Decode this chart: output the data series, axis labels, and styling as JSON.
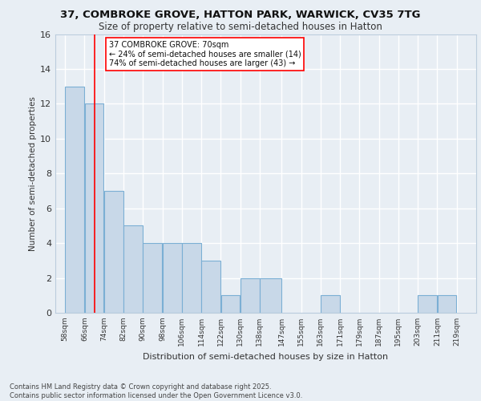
{
  "title_line1": "37, COMBROKE GROVE, HATTON PARK, WARWICK, CV35 7TG",
  "title_line2": "Size of property relative to semi-detached houses in Hatton",
  "xlabel": "Distribution of semi-detached houses by size in Hatton",
  "ylabel": "Number of semi-detached properties",
  "footer_line1": "Contains HM Land Registry data © Crown copyright and database right 2025.",
  "footer_line2": "Contains public sector information licensed under the Open Government Licence v3.0.",
  "annotation_title": "37 COMBROKE GROVE: 70sqm",
  "annotation_line1": "← 24% of semi-detached houses are smaller (14)",
  "annotation_line2": "74% of semi-detached houses are larger (43) →",
  "bar_left_edges": [
    58,
    66,
    74,
    82,
    90,
    98,
    106,
    114,
    122,
    130,
    138,
    147,
    155,
    163,
    171,
    179,
    187,
    195,
    203,
    211
  ],
  "bar_heights": [
    13,
    12,
    7,
    5,
    4,
    4,
    4,
    3,
    1,
    2,
    2,
    0,
    0,
    1,
    0,
    0,
    0,
    0,
    1,
    1
  ],
  "bar_widths": [
    8,
    8,
    8,
    8,
    8,
    8,
    8,
    8,
    8,
    8,
    9,
    8,
    8,
    8,
    8,
    8,
    8,
    8,
    8,
    8
  ],
  "tick_labels": [
    "58sqm",
    "66sqm",
    "74sqm",
    "82sqm",
    "90sqm",
    "98sqm",
    "106sqm",
    "114sqm",
    "122sqm",
    "130sqm",
    "138sqm",
    "147sqm",
    "155sqm",
    "163sqm",
    "171sqm",
    "179sqm",
    "187sqm",
    "195sqm",
    "203sqm",
    "211sqm",
    "219sqm"
  ],
  "tick_positions": [
    58,
    66,
    74,
    82,
    90,
    98,
    106,
    114,
    122,
    130,
    138,
    147,
    155,
    163,
    171,
    179,
    187,
    195,
    203,
    211,
    219
  ],
  "bar_color": "#c8d8e8",
  "bar_edge_color": "#7bafd4",
  "red_line_x": 70,
  "ylim": [
    0,
    16
  ],
  "xlim": [
    54,
    227
  ],
  "background_color": "#e8eef4",
  "plot_bg_color": "#e8eef4",
  "grid_color": "#ffffff",
  "yticks": [
    0,
    2,
    4,
    6,
    8,
    10,
    12,
    14,
    16
  ]
}
